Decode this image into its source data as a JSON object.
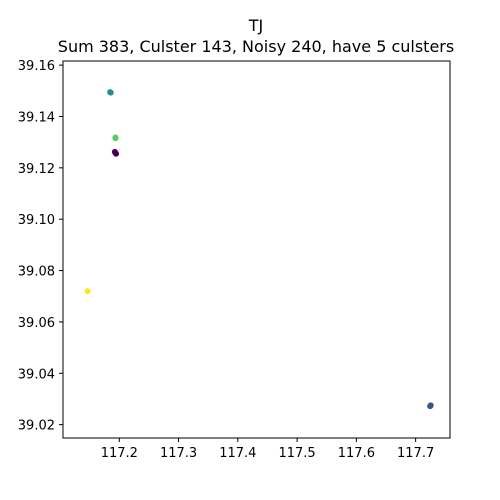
{
  "chart_data": {
    "type": "scatter",
    "title": "TJ",
    "subtitle": "Sum 383, Culster 143, Noisy 240, have 5 culsters",
    "xlabel": "",
    "ylabel": "",
    "xlim": [
      117.105,
      117.758
    ],
    "ylim": [
      39.0148,
      39.1616
    ],
    "x_ticks": [
      117.2,
      117.3,
      117.4,
      117.5,
      117.6,
      117.7
    ],
    "x_tick_labels": [
      "117.2",
      "117.3",
      "117.4",
      "117.5",
      "117.6",
      "117.7"
    ],
    "y_ticks": [
      39.02,
      39.04,
      39.06,
      39.08,
      39.1,
      39.12,
      39.14,
      39.16
    ],
    "y_tick_labels": [
      "39.02",
      "39.04",
      "39.06",
      "39.08",
      "39.10",
      "39.12",
      "39.14",
      "39.16"
    ],
    "grid": false,
    "series": [
      {
        "color": "#440154",
        "points": [
          [
            117.1935,
            39.1258
          ],
          [
            117.1925,
            39.1262
          ],
          [
            117.1945,
            39.1255
          ]
        ]
      },
      {
        "color": "#3b528b",
        "points": [
          [
            117.7255,
            39.0275
          ],
          [
            117.7245,
            39.0272
          ]
        ]
      },
      {
        "color": "#21918c",
        "points": [
          [
            117.1855,
            39.1493
          ],
          [
            117.1845,
            39.1495
          ]
        ]
      },
      {
        "color": "#5ec962",
        "points": [
          [
            117.1935,
            39.1318
          ],
          [
            117.1935,
            39.1315
          ]
        ]
      },
      {
        "color": "#fde725",
        "points": [
          [
            117.1465,
            39.072
          ]
        ]
      }
    ]
  }
}
